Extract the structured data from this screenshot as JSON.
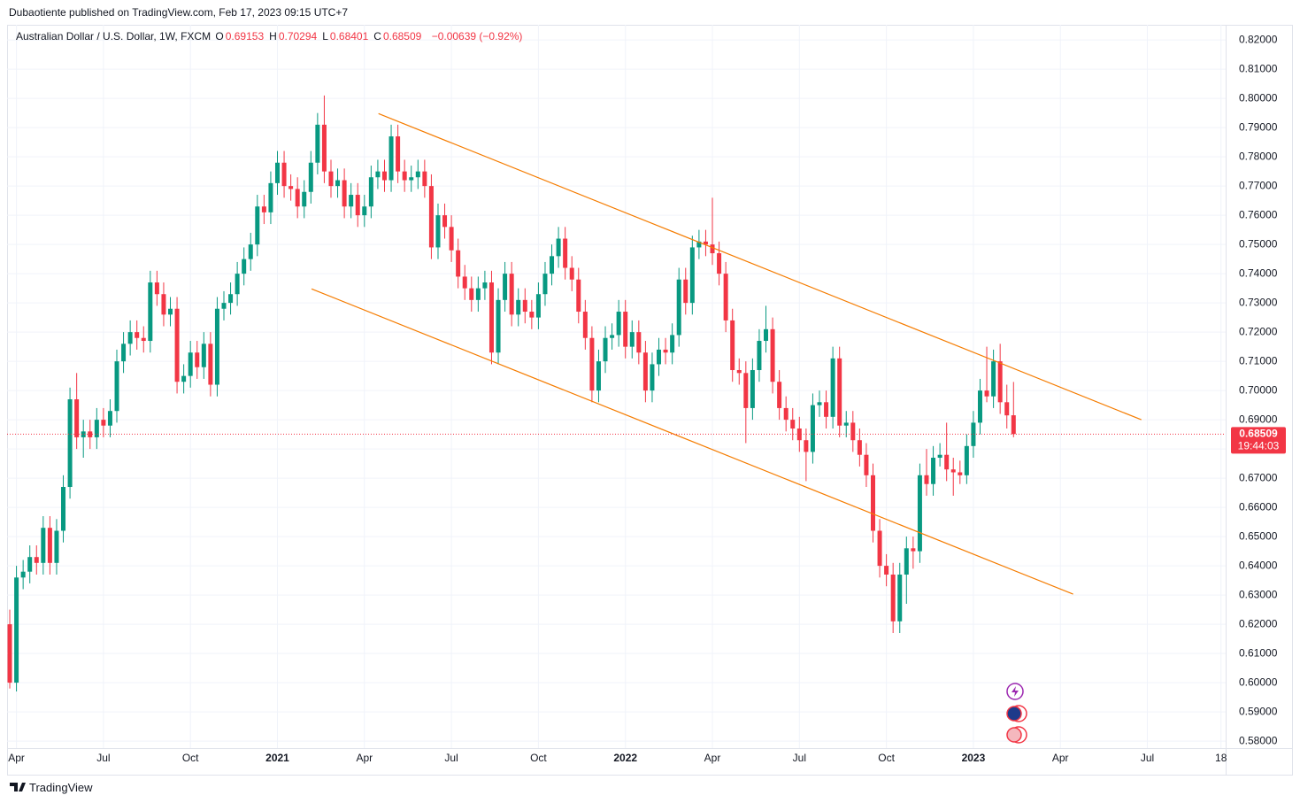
{
  "attribution": "Dubaotiente published on TradingView.com, Feb 17, 2023 09:15 UTC+7",
  "brand": "TradingView",
  "chart_data": {
    "type": "candlestick",
    "symbol": "Australian Dollar / U.S. Dollar, 1W, FXCM",
    "ohlc_legend": [
      {
        "label": "O",
        "value": "0.69153"
      },
      {
        "label": "H",
        "value": "0.70294"
      },
      {
        "label": "L",
        "value": "0.68401"
      },
      {
        "label": "C",
        "value": "0.68509"
      }
    ],
    "change": "−0.00639 (−0.92%)",
    "up_color": "#089981",
    "down_color": "#f23645",
    "open": [
      0.62,
      0.6,
      0.636,
      0.638,
      0.643,
      0.641,
      0.653,
      0.641,
      0.652,
      0.667,
      0.697,
      0.684,
      0.686,
      0.684,
      0.69,
      0.688,
      0.693,
      0.71,
      0.716,
      0.72,
      0.718,
      0.717,
      0.737,
      0.733,
      0.726,
      0.728,
      0.703,
      0.705,
      0.713,
      0.708,
      0.716,
      0.702,
      0.728,
      0.73,
      0.733,
      0.74,
      0.745,
      0.75,
      0.763,
      0.761,
      0.771,
      0.778,
      0.77,
      0.769,
      0.763,
      0.768,
      0.778,
      0.791,
      0.775,
      0.77,
      0.772,
      0.763,
      0.767,
      0.76,
      0.763,
      0.773,
      0.775,
      0.772,
      0.787,
      0.775,
      0.772,
      0.773,
      0.775,
      0.77,
      0.749,
      0.76,
      0.756,
      0.748,
      0.739,
      0.735,
      0.731,
      0.735,
      0.737,
      0.713,
      0.731,
      0.74,
      0.726,
      0.731,
      0.727,
      0.725,
      0.733,
      0.74,
      0.746,
      0.752,
      0.742,
      0.738,
      0.727,
      0.718,
      0.7,
      0.71,
      0.718,
      0.719,
      0.727,
      0.715,
      0.72,
      0.713,
      0.7,
      0.709,
      0.714,
      0.713,
      0.719,
      0.738,
      0.73,
      0.749,
      0.751,
      0.75,
      0.747,
      0.74,
      0.724,
      0.707,
      0.706,
      0.694,
      0.707,
      0.717,
      0.721,
      0.703,
      0.694,
      0.69,
      0.687,
      0.683,
      0.679,
      0.695,
      0.696,
      0.691,
      0.711,
      0.688,
      0.689,
      0.683,
      0.678,
      0.671,
      0.652,
      0.64,
      0.637,
      0.621,
      0.637,
      0.646,
      0.645,
      0.671,
      0.668,
      0.677,
      0.678,
      0.673,
      0.672,
      0.671,
      0.681,
      0.689,
      0.7,
      0.698,
      0.71,
      0.696,
      0.69153
    ],
    "high": [
      0.625,
      0.64,
      0.642,
      0.647,
      0.647,
      0.657,
      0.657,
      0.656,
      0.671,
      0.701,
      0.706,
      0.69,
      0.69,
      0.694,
      0.694,
      0.697,
      0.714,
      0.72,
      0.724,
      0.724,
      0.722,
      0.741,
      0.741,
      0.737,
      0.732,
      0.732,
      0.709,
      0.717,
      0.717,
      0.72,
      0.72,
      0.732,
      0.734,
      0.737,
      0.744,
      0.749,
      0.754,
      0.767,
      0.767,
      0.775,
      0.782,
      0.782,
      0.774,
      0.773,
      0.772,
      0.782,
      0.795,
      0.801,
      0.779,
      0.776,
      0.776,
      0.771,
      0.771,
      0.767,
      0.777,
      0.779,
      0.779,
      0.791,
      0.791,
      0.779,
      0.777,
      0.779,
      0.779,
      0.774,
      0.764,
      0.764,
      0.76,
      0.752,
      0.743,
      0.739,
      0.739,
      0.741,
      0.741,
      0.735,
      0.744,
      0.744,
      0.735,
      0.735,
      0.731,
      0.737,
      0.744,
      0.75,
      0.756,
      0.756,
      0.746,
      0.742,
      0.731,
      0.722,
      0.714,
      0.722,
      0.723,
      0.731,
      0.731,
      0.724,
      0.724,
      0.717,
      0.713,
      0.718,
      0.718,
      0.723,
      0.742,
      0.742,
      0.753,
      0.755,
      0.755,
      0.766,
      0.751,
      0.744,
      0.728,
      0.711,
      0.71,
      0.711,
      0.721,
      0.729,
      0.725,
      0.707,
      0.698,
      0.694,
      0.691,
      0.687,
      0.699,
      0.7,
      0.7,
      0.715,
      0.715,
      0.693,
      0.693,
      0.687,
      0.682,
      0.675,
      0.656,
      0.644,
      0.641,
      0.641,
      0.65,
      0.65,
      0.675,
      0.68,
      0.681,
      0.682,
      0.689,
      0.677,
      0.676,
      0.685,
      0.693,
      0.704,
      0.715,
      0.714,
      0.716,
      0.702,
      0.70294
    ],
    "low": [
      0.598,
      0.597,
      0.632,
      0.634,
      0.637,
      0.637,
      0.637,
      0.637,
      0.648,
      0.663,
      0.68,
      0.677,
      0.68,
      0.68,
      0.684,
      0.684,
      0.689,
      0.706,
      0.712,
      0.714,
      0.713,
      0.713,
      0.729,
      0.722,
      0.722,
      0.699,
      0.699,
      0.701,
      0.704,
      0.704,
      0.698,
      0.698,
      0.724,
      0.726,
      0.729,
      0.736,
      0.741,
      0.746,
      0.757,
      0.757,
      0.767,
      0.766,
      0.765,
      0.759,
      0.759,
      0.764,
      0.774,
      0.771,
      0.766,
      0.766,
      0.759,
      0.759,
      0.756,
      0.756,
      0.759,
      0.769,
      0.768,
      0.768,
      0.771,
      0.768,
      0.768,
      0.769,
      0.766,
      0.745,
      0.745,
      0.752,
      0.744,
      0.735,
      0.731,
      0.727,
      0.727,
      0.731,
      0.709,
      0.709,
      0.727,
      0.722,
      0.722,
      0.723,
      0.721,
      0.721,
      0.729,
      0.736,
      0.742,
      0.738,
      0.734,
      0.723,
      0.714,
      0.696,
      0.696,
      0.706,
      0.714,
      0.715,
      0.711,
      0.711,
      0.709,
      0.696,
      0.696,
      0.705,
      0.709,
      0.709,
      0.715,
      0.726,
      0.726,
      0.745,
      0.746,
      0.743,
      0.736,
      0.72,
      0.703,
      0.702,
      0.682,
      0.69,
      0.703,
      0.713,
      0.699,
      0.69,
      0.686,
      0.683,
      0.679,
      0.669,
      0.675,
      0.691,
      0.687,
      0.687,
      0.684,
      0.684,
      0.679,
      0.674,
      0.667,
      0.648,
      0.636,
      0.633,
      0.617,
      0.617,
      0.627,
      0.639,
      0.641,
      0.664,
      0.664,
      0.674,
      0.669,
      0.664,
      0.668,
      0.668,
      0.677,
      0.685,
      0.696,
      0.694,
      0.692,
      0.687,
      0.68401
    ],
    "close": [
      0.6,
      0.636,
      0.638,
      0.643,
      0.641,
      0.653,
      0.641,
      0.652,
      0.667,
      0.697,
      0.684,
      0.686,
      0.684,
      0.69,
      0.688,
      0.693,
      0.71,
      0.716,
      0.72,
      0.718,
      0.717,
      0.737,
      0.733,
      0.726,
      0.728,
      0.703,
      0.705,
      0.713,
      0.708,
      0.716,
      0.702,
      0.728,
      0.73,
      0.733,
      0.74,
      0.745,
      0.75,
      0.763,
      0.761,
      0.771,
      0.778,
      0.77,
      0.769,
      0.763,
      0.768,
      0.778,
      0.791,
      0.775,
      0.77,
      0.772,
      0.763,
      0.767,
      0.76,
      0.763,
      0.773,
      0.775,
      0.772,
      0.787,
      0.775,
      0.772,
      0.773,
      0.775,
      0.77,
      0.749,
      0.76,
      0.756,
      0.748,
      0.739,
      0.735,
      0.731,
      0.735,
      0.737,
      0.713,
      0.731,
      0.74,
      0.726,
      0.731,
      0.727,
      0.725,
      0.733,
      0.74,
      0.746,
      0.752,
      0.742,
      0.738,
      0.727,
      0.718,
      0.7,
      0.71,
      0.718,
      0.719,
      0.727,
      0.715,
      0.72,
      0.713,
      0.7,
      0.709,
      0.714,
      0.713,
      0.719,
      0.738,
      0.73,
      0.749,
      0.751,
      0.75,
      0.747,
      0.74,
      0.724,
      0.707,
      0.706,
      0.694,
      0.707,
      0.717,
      0.721,
      0.703,
      0.694,
      0.69,
      0.687,
      0.683,
      0.679,
      0.695,
      0.696,
      0.691,
      0.711,
      0.688,
      0.689,
      0.683,
      0.678,
      0.671,
      0.652,
      0.64,
      0.637,
      0.621,
      0.637,
      0.646,
      0.645,
      0.671,
      0.668,
      0.677,
      0.678,
      0.673,
      0.672,
      0.671,
      0.681,
      0.689,
      0.7,
      0.698,
      0.71,
      0.696,
      0.6915,
      0.68509
    ],
    "last_price": {
      "label": "0.68509",
      "countdown": "19:44:03"
    },
    "trendlines": [
      {
        "x": [
          55.1,
          169.1
        ],
        "y": [
          0.7948,
          0.69
        ],
        "color": "#f57c00"
      },
      {
        "x": [
          45.1,
          158.9
        ],
        "y": [
          0.7348,
          0.6303
        ],
        "color": "#f57c00"
      }
    ],
    "xlim": [
      -0.4,
      181.7
    ],
    "xticks": [
      {
        "value": 1,
        "label": "Apr"
      },
      {
        "value": 14,
        "label": "Jul"
      },
      {
        "value": 27,
        "label": "Oct"
      },
      {
        "value": 40,
        "label": "2021"
      },
      {
        "value": 53,
        "label": "Apr"
      },
      {
        "value": 66,
        "label": "Jul"
      },
      {
        "value": 79,
        "label": "Oct"
      },
      {
        "value": 92,
        "label": "2022"
      },
      {
        "value": 105,
        "label": "Apr"
      },
      {
        "value": 118,
        "label": "Jul"
      },
      {
        "value": 131,
        "label": "Oct"
      },
      {
        "value": 144,
        "label": "2023"
      },
      {
        "value": 157,
        "label": "Apr"
      },
      {
        "value": 170,
        "label": "Jul"
      },
      {
        "value": 181,
        "label": "18"
      }
    ],
    "ylim": [
      0.5776,
      0.8252
    ],
    "yticks": [
      {
        "value": 0.58,
        "label": "0.58000"
      },
      {
        "value": 0.59,
        "label": "0.59000"
      },
      {
        "value": 0.6,
        "label": "0.60000"
      },
      {
        "value": 0.61,
        "label": "0.61000"
      },
      {
        "value": 0.62,
        "label": "0.62000"
      },
      {
        "value": 0.63,
        "label": "0.63000"
      },
      {
        "value": 0.64,
        "label": "0.64000"
      },
      {
        "value": 0.65,
        "label": "0.65000"
      },
      {
        "value": 0.66,
        "label": "0.66000"
      },
      {
        "value": 0.67,
        "label": "0.67000"
      },
      {
        "value": 0.68,
        "label": "0.68000"
      },
      {
        "value": 0.69,
        "label": "0.69000"
      },
      {
        "value": 0.7,
        "label": "0.70000"
      },
      {
        "value": 0.71,
        "label": "0.71000"
      },
      {
        "value": 0.72,
        "label": "0.72000"
      },
      {
        "value": 0.73,
        "label": "0.73000"
      },
      {
        "value": 0.74,
        "label": "0.74000"
      },
      {
        "value": 0.75,
        "label": "0.75000"
      },
      {
        "value": 0.76,
        "label": "0.76000"
      },
      {
        "value": 0.77,
        "label": "0.77000"
      },
      {
        "value": 0.78,
        "label": "0.78000"
      },
      {
        "value": 0.79,
        "label": "0.79000"
      },
      {
        "value": 0.8,
        "label": "0.80000"
      },
      {
        "value": 0.81,
        "label": "0.81000"
      },
      {
        "value": 0.82,
        "label": "0.82000"
      }
    ],
    "grid": true
  }
}
